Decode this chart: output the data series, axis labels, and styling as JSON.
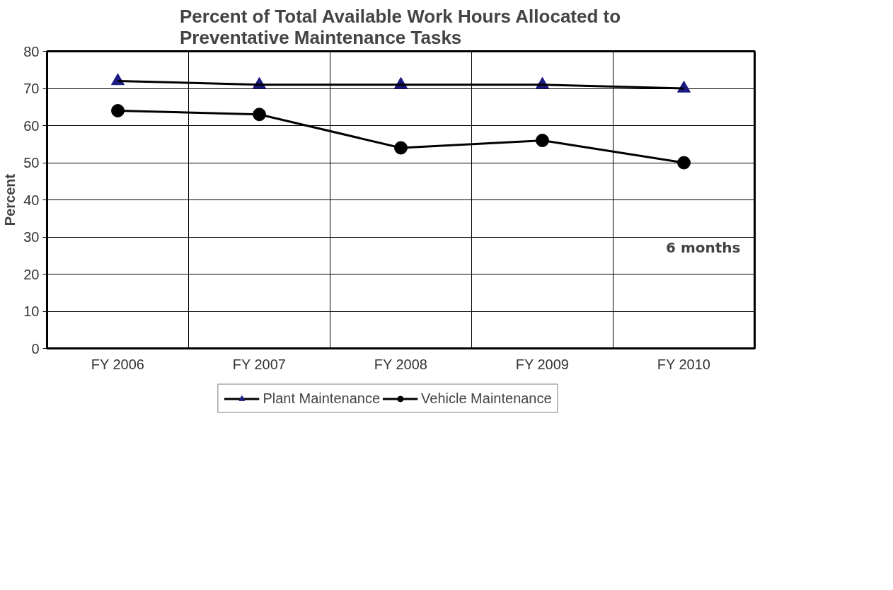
{
  "chart_data": {
    "type": "line",
    "title": "Percent of Total Available Work Hours Allocated to\nPreventative Maintenance Tasks",
    "ylabel": "Percent",
    "categories": [
      "FY 2006",
      "FY 2007",
      "FY 2008",
      "FY 2009",
      "FY 2010"
    ],
    "series": [
      {
        "name": "Plant Maintenance",
        "color": "#1a1a80",
        "marker": "triangle",
        "values": [
          72,
          71,
          71,
          71,
          70
        ]
      },
      {
        "name": "Vehicle Maintenance",
        "color": "#000000",
        "marker": "circle",
        "values": [
          64,
          63,
          54,
          56,
          50
        ]
      }
    ],
    "ylim": [
      0,
      80
    ],
    "yticks": [
      0,
      10,
      20,
      30,
      40,
      50,
      60,
      70,
      80
    ],
    "grid": true,
    "legend": "bottom",
    "annotations": [
      "6 months"
    ]
  }
}
